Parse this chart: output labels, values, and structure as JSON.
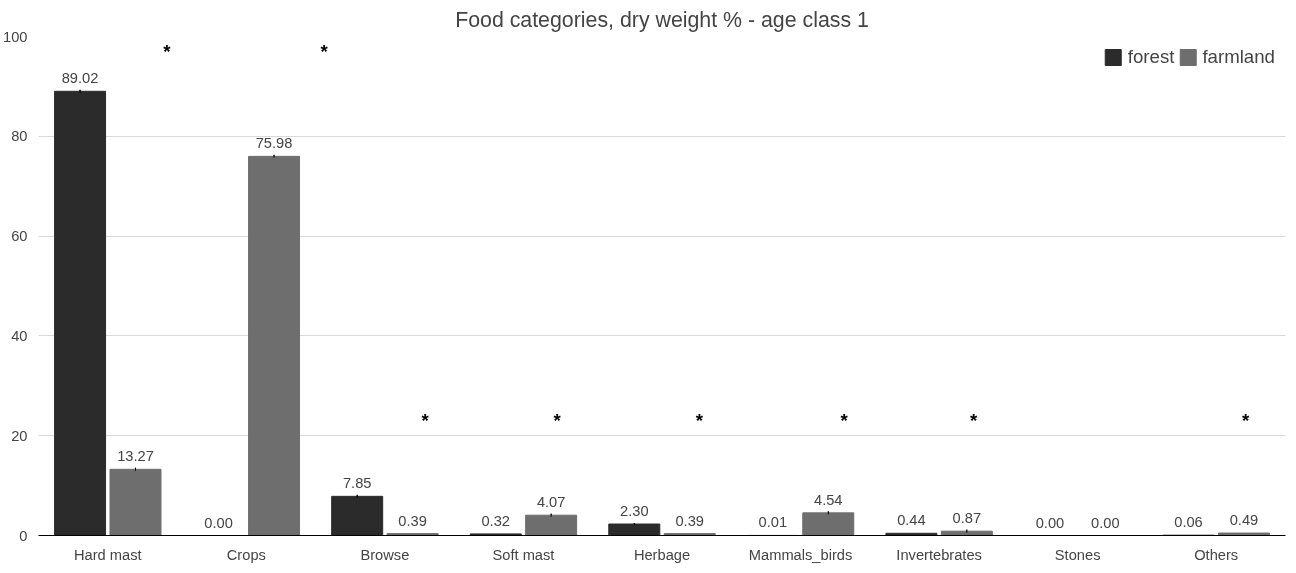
{
  "chart_data": {
    "type": "bar",
    "title": "Food categories, dry weight % - age class 1",
    "categories": [
      "Hard mast",
      "Crops",
      "Browse",
      "Soft mast",
      "Herbage",
      "Mammals_birds",
      "Invertebrates",
      "Stones",
      "Others"
    ],
    "series": [
      {
        "name": "forest",
        "color": "#2b2b2b",
        "values": [
          89.02,
          0.0,
          7.85,
          0.32,
          2.3,
          0.01,
          0.44,
          0.0,
          0.06
        ],
        "value_labels": [
          "89.02",
          "0.00",
          "7.85",
          "0.32",
          "2.30",
          "0.01",
          "0.44",
          "0.00",
          "0.06"
        ],
        "errors": [
          0.3,
          null,
          0.3,
          null,
          0.2,
          null,
          null,
          null,
          null
        ]
      },
      {
        "name": "farmland",
        "color": "#6e6e6e",
        "values": [
          13.27,
          75.98,
          0.39,
          4.07,
          0.39,
          4.54,
          0.87,
          0.0,
          0.49
        ],
        "value_labels": [
          "13.27",
          "75.98",
          "0.39",
          "4.07",
          "0.39",
          "4.54",
          "0.87",
          "0.00",
          "0.49"
        ],
        "errors": [
          0.3,
          0.3,
          null,
          0.3,
          null,
          0.3,
          0.3,
          null,
          null
        ]
      }
    ],
    "ylim": [
      0,
      100
    ],
    "yticks": [
      0,
      20,
      40,
      60,
      80,
      100
    ],
    "grid": "y",
    "legend": "top right",
    "annotations": [
      "*",
      "*",
      "*",
      "*",
      "*",
      "*",
      "*",
      "*"
    ]
  }
}
